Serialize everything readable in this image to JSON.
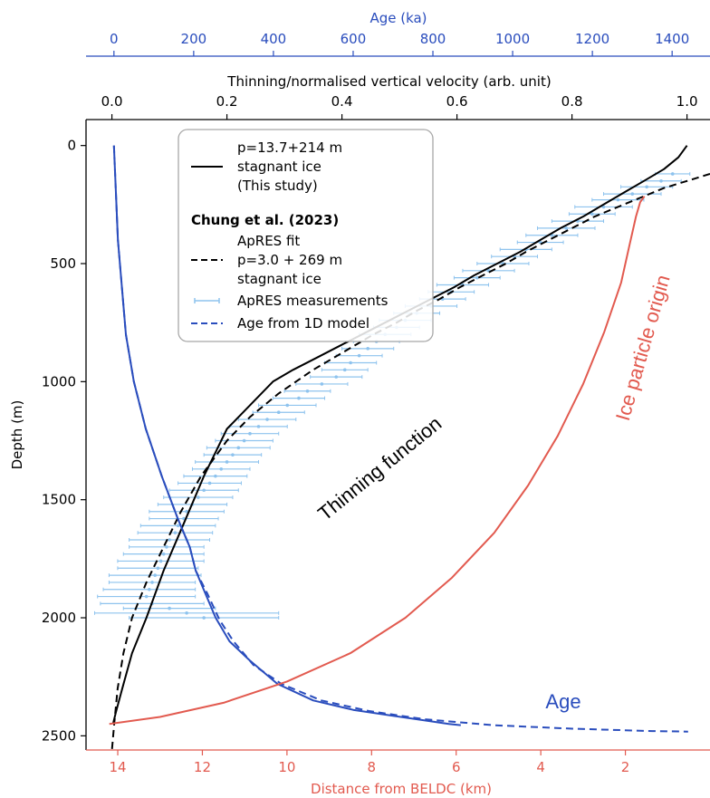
{
  "chart_data": {
    "type": "line",
    "axes": {
      "depth": {
        "label": "Depth (m)",
        "range": [
          2560,
          -110
        ],
        "ticks": [
          0,
          500,
          1000,
          1500,
          2000,
          2500
        ],
        "tick_labels": [
          "0",
          "500",
          "1000",
          "1500",
          "2000",
          "2500"
        ]
      },
      "velocity": {
        "label": "Thinning/normalised vertical velocity (arb. unit)",
        "range": [
          -0.045,
          1.04
        ],
        "ticks": [
          0.0,
          0.2,
          0.4,
          0.6,
          0.8,
          1.0
        ],
        "tick_labels": [
          "0.0",
          "0.2",
          "0.4",
          "0.6",
          "0.8",
          "1.0"
        ],
        "color": "#000000"
      },
      "age": {
        "label": "Age (ka)",
        "range": [
          -70,
          1495
        ],
        "ticks": [
          0,
          200,
          400,
          600,
          800,
          1000,
          1200,
          1400
        ],
        "tick_labels": [
          "0",
          "200",
          "400",
          "600",
          "800",
          "1000",
          "1200",
          "1400"
        ],
        "color": "#2a4dbd"
      },
      "distance": {
        "label": "Distance from BELDC (km)",
        "range": [
          14.75,
          0.0
        ],
        "ticks": [
          14,
          12,
          10,
          8,
          6,
          4,
          2
        ],
        "tick_labels": [
          "14",
          "12",
          "10",
          "8",
          "6",
          "4",
          "2"
        ],
        "color": "#e25a4f"
      }
    },
    "legend": {
      "placement": "top-left",
      "entries": [
        {
          "style": "solid-black",
          "lines": [
            "p=13.7+214 m",
            "stagnant ice",
            "(This study)"
          ]
        },
        {
          "style": "header",
          "lines": [
            "Chung et al. (2023)"
          ]
        },
        {
          "style": "dashed-black",
          "lines": [
            "ApRES fit",
            "p=3.0 + 269 m",
            "stagnant ice"
          ]
        },
        {
          "style": "errorbar-lightblue",
          "lines": [
            "ApRES measurements"
          ]
        },
        {
          "style": "dashed-blue",
          "lines": [
            "Age from 1D model"
          ]
        }
      ]
    },
    "annotations": [
      {
        "text": "Thinning function",
        "color": "#000000"
      },
      {
        "text": "Ice particle origin",
        "color": "#e25a4f"
      },
      {
        "text": "Age",
        "color": "#2a4dbd"
      }
    ],
    "series": [
      {
        "axis": "velocity",
        "color": "#000000",
        "style": "solid",
        "x": [
          1.0,
          0.985,
          0.96,
          0.925,
          0.89,
          0.855,
          0.82,
          0.78,
          0.745,
          0.71,
          0.67,
          0.63,
          0.595,
          0.555,
          0.515,
          0.475,
          0.435,
          0.395,
          0.355,
          0.315,
          0.28,
          0.24,
          0.2,
          0.16,
          0.125,
          0.09,
          0.06,
          0.035,
          0.018,
          0.007,
          0.002
        ],
        "y": [
          0,
          50,
          100,
          150,
          200,
          250,
          300,
          350,
          400,
          450,
          500,
          550,
          600,
          650,
          700,
          750,
          800,
          850,
          900,
          950,
          1000,
          1100,
          1200,
          1400,
          1600,
          1800,
          2000,
          2150,
          2300,
          2400,
          2450
        ]
      },
      {
        "axis": "velocity",
        "color": "#000000",
        "style": "dashed",
        "x": [
          1.04,
          1.0,
          0.96,
          0.92,
          0.88,
          0.84,
          0.8,
          0.76,
          0.72,
          0.685,
          0.645,
          0.605,
          0.57,
          0.53,
          0.495,
          0.455,
          0.42,
          0.35,
          0.29,
          0.24,
          0.2,
          0.155,
          0.12,
          0.09,
          0.06,
          0.035,
          0.02,
          0.01,
          0.004,
          0.0
        ],
        "y": [
          120,
          150,
          180,
          220,
          260,
          300,
          350,
          400,
          450,
          500,
          550,
          600,
          650,
          700,
          750,
          800,
          850,
          950,
          1050,
          1150,
          1250,
          1400,
          1550,
          1700,
          1850,
          2000,
          2150,
          2300,
          2450,
          2560
        ]
      },
      {
        "axis": "age",
        "color": "#2a4dbd",
        "style": "solid",
        "x": [
          0,
          5,
          10,
          20,
          30,
          50,
          80,
          120,
          160,
          190,
          205,
          230,
          255,
          290,
          340,
          410,
          500,
          600,
          700,
          780,
          840,
          870
        ],
        "y": [
          0,
          200,
          400,
          600,
          800,
          1000,
          1200,
          1400,
          1580,
          1700,
          1800,
          1900,
          2000,
          2100,
          2180,
          2280,
          2350,
          2390,
          2415,
          2435,
          2450,
          2455
        ]
      },
      {
        "axis": "age",
        "color": "#2a4dbd",
        "style": "dashed",
        "x": [
          0,
          5,
          10,
          20,
          30,
          50,
          80,
          120,
          160,
          190,
          205,
          235,
          265,
          300,
          350,
          420,
          520,
          640,
          780,
          950,
          1150,
          1350,
          1440
        ],
        "y": [
          0,
          200,
          400,
          600,
          800,
          1000,
          1200,
          1400,
          1580,
          1700,
          1800,
          1900,
          2010,
          2100,
          2200,
          2280,
          2350,
          2395,
          2430,
          2455,
          2470,
          2480,
          2482
        ]
      },
      {
        "axis": "distance",
        "color": "#e25a4f",
        "style": "solid",
        "x": [
          14.2,
          13.0,
          11.5,
          10.0,
          8.5,
          7.2,
          6.1,
          5.1,
          4.3,
          3.6,
          3.0,
          2.5,
          2.1,
          1.9,
          1.75,
          1.65,
          1.55
        ],
        "y": [
          2450,
          2420,
          2360,
          2270,
          2150,
          2000,
          1830,
          1640,
          1440,
          1230,
          1010,
          790,
          580,
          420,
          300,
          240,
          215
        ]
      }
    ],
    "measurements": {
      "axis": "velocity",
      "color": "#8ec3ee",
      "points": [
        [
          0.975,
          120,
          0.03
        ],
        [
          0.955,
          150,
          0.035
        ],
        [
          0.93,
          175,
          0.045
        ],
        [
          0.905,
          205,
          0.05
        ],
        [
          0.88,
          230,
          0.045
        ],
        [
          0.855,
          260,
          0.05
        ],
        [
          0.835,
          290,
          0.04
        ],
        [
          0.81,
          320,
          0.045
        ],
        [
          0.79,
          350,
          0.05
        ],
        [
          0.765,
          380,
          0.045
        ],
        [
          0.745,
          410,
          0.04
        ],
        [
          0.72,
          440,
          0.045
        ],
        [
          0.7,
          470,
          0.04
        ],
        [
          0.68,
          500,
          0.045
        ],
        [
          0.655,
          530,
          0.045
        ],
        [
          0.635,
          560,
          0.04
        ],
        [
          0.61,
          590,
          0.045
        ],
        [
          0.59,
          620,
          0.04
        ],
        [
          0.575,
          650,
          0.04
        ],
        [
          0.555,
          680,
          0.045
        ],
        [
          0.53,
          710,
          0.04
        ],
        [
          0.51,
          740,
          0.045
        ],
        [
          0.495,
          770,
          0.04
        ],
        [
          0.475,
          800,
          0.045
        ],
        [
          0.46,
          830,
          0.04
        ],
        [
          0.445,
          860,
          0.045
        ],
        [
          0.43,
          890,
          0.04
        ],
        [
          0.415,
          920,
          0.045
        ],
        [
          0.405,
          950,
          0.04
        ],
        [
          0.39,
          980,
          0.045
        ],
        [
          0.365,
          1010,
          0.045
        ],
        [
          0.34,
          1040,
          0.04
        ],
        [
          0.325,
          1070,
          0.045
        ],
        [
          0.305,
          1100,
          0.05
        ],
        [
          0.29,
          1130,
          0.045
        ],
        [
          0.27,
          1160,
          0.05
        ],
        [
          0.255,
          1190,
          0.05
        ],
        [
          0.24,
          1220,
          0.05
        ],
        [
          0.23,
          1250,
          0.05
        ],
        [
          0.22,
          1280,
          0.055
        ],
        [
          0.21,
          1310,
          0.05
        ],
        [
          0.2,
          1340,
          0.055
        ],
        [
          0.19,
          1370,
          0.05
        ],
        [
          0.18,
          1400,
          0.055
        ],
        [
          0.17,
          1430,
          0.055
        ],
        [
          0.16,
          1460,
          0.06
        ],
        [
          0.15,
          1490,
          0.06
        ],
        [
          0.14,
          1520,
          0.06
        ],
        [
          0.13,
          1550,
          0.065
        ],
        [
          0.125,
          1580,
          0.06
        ],
        [
          0.115,
          1610,
          0.065
        ],
        [
          0.11,
          1640,
          0.065
        ],
        [
          0.1,
          1670,
          0.07
        ],
        [
          0.095,
          1700,
          0.065
        ],
        [
          0.09,
          1730,
          0.07
        ],
        [
          0.085,
          1760,
          0.075
        ],
        [
          0.08,
          1790,
          0.07
        ],
        [
          0.075,
          1820,
          0.08
        ],
        [
          0.07,
          1850,
          0.075
        ],
        [
          0.065,
          1880,
          0.08
        ],
        [
          0.06,
          1910,
          0.085
        ],
        [
          0.07,
          1940,
          0.09
        ],
        [
          0.1,
          1960,
          0.08
        ],
        [
          0.13,
          1980,
          0.16
        ],
        [
          0.16,
          2000,
          0.13
        ]
      ]
    }
  }
}
